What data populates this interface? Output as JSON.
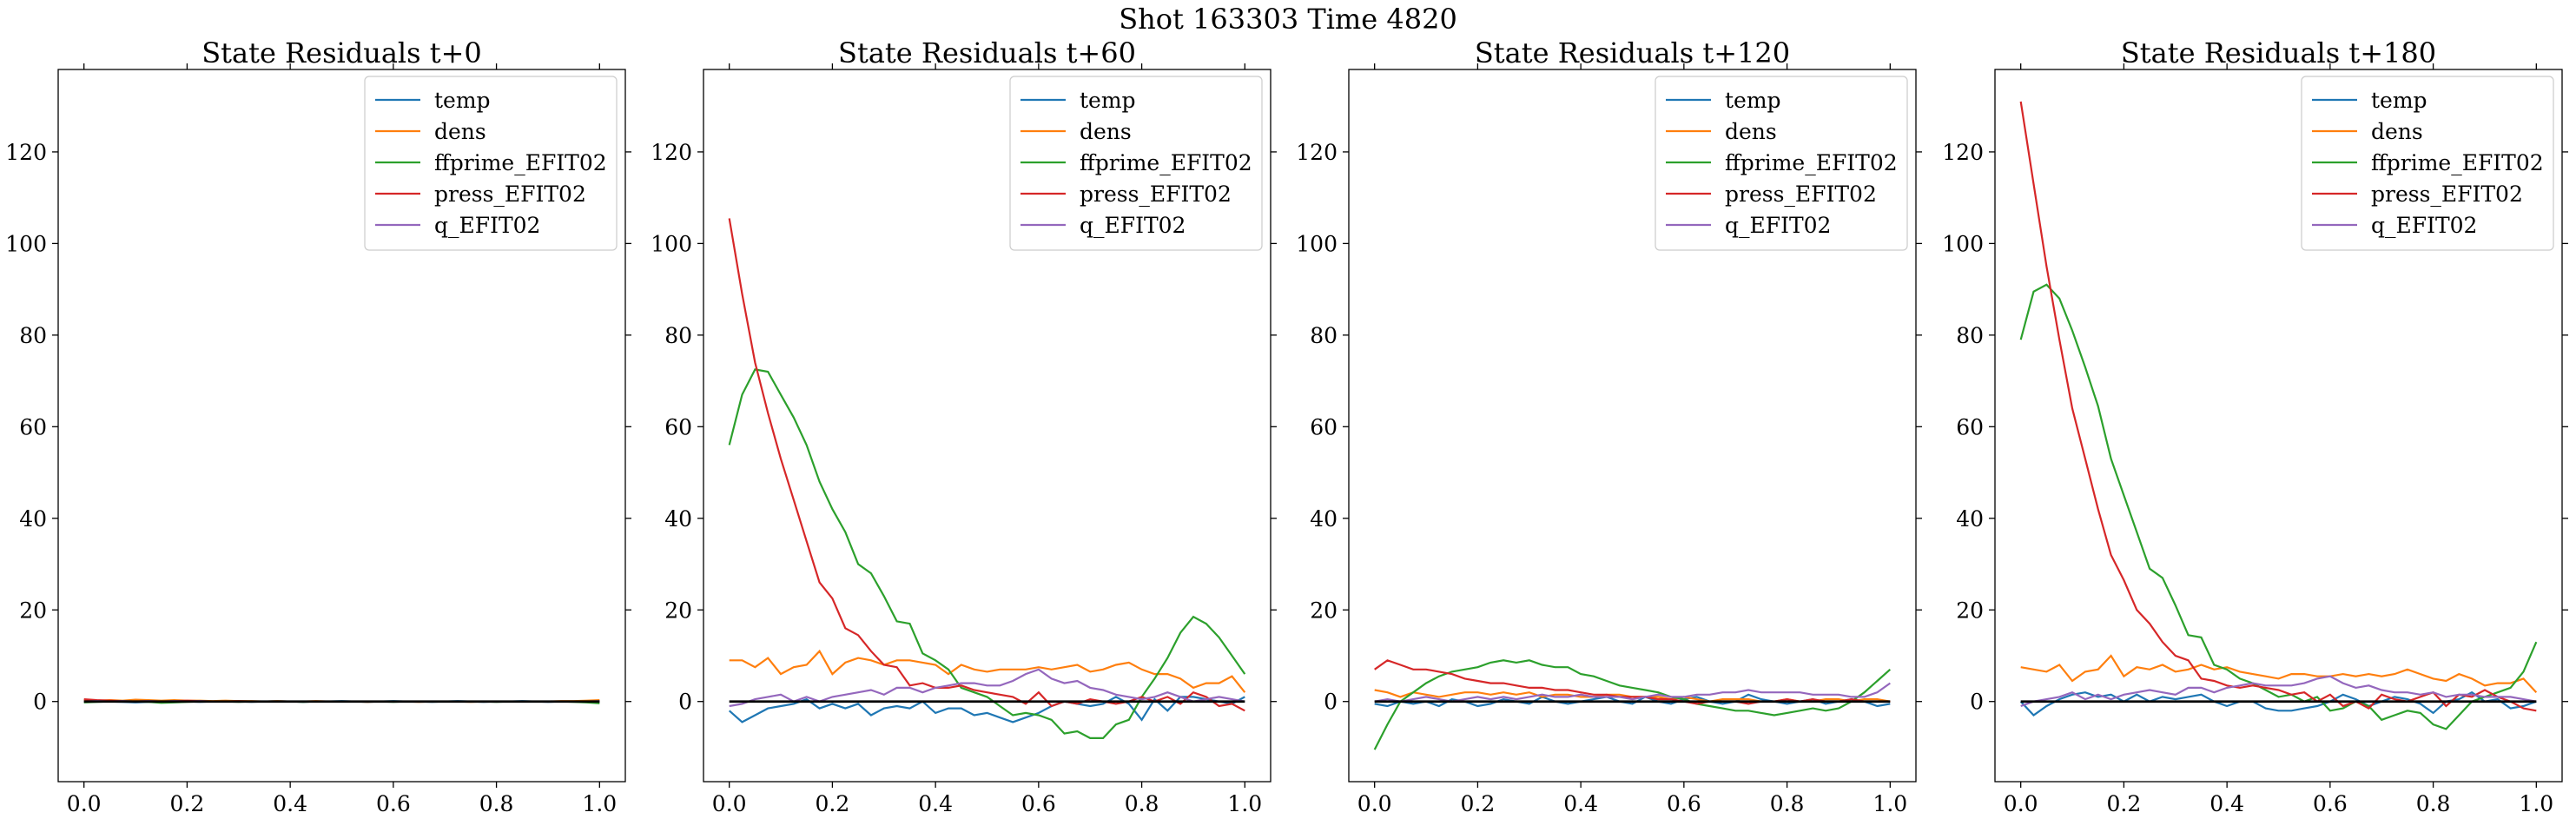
{
  "figure": {
    "suptitle": "Shot 163303   Time 4820"
  },
  "colors": {
    "temp": "#1f77b4",
    "dens": "#ff7f0e",
    "ffprime_EFIT02": "#2ca02c",
    "press_EFIT02": "#d62728",
    "q_EFIT02": "#9467bd",
    "zero_line": "#000000"
  },
  "chart_data": [
    {
      "type": "line",
      "title": "State Residuals t+0",
      "xlabel": "",
      "ylabel": "",
      "xlim": [
        -0.05,
        1.05
      ],
      "ylim": [
        -17.5,
        138
      ],
      "xticks": [
        "0.0",
        "0.2",
        "0.4",
        "0.6",
        "0.8",
        "1.0"
      ],
      "yticks": [
        "0",
        "20",
        "40",
        "60",
        "80",
        "100",
        "120"
      ],
      "legend": "top-right",
      "x": [
        0.0,
        0.025,
        0.05,
        0.075,
        0.1,
        0.125,
        0.15,
        0.175,
        0.2,
        0.225,
        0.25,
        0.275,
        0.3,
        0.325,
        0.35,
        0.375,
        0.4,
        0.425,
        0.45,
        0.475,
        0.5,
        0.525,
        0.55,
        0.575,
        0.6,
        0.625,
        0.65,
        0.675,
        0.7,
        0.725,
        0.75,
        0.775,
        0.8,
        0.825,
        0.85,
        0.875,
        0.9,
        0.925,
        0.95,
        0.975,
        1.0
      ],
      "series": [
        {
          "name": "temp",
          "values": [
            0.2,
            0.1,
            0.0,
            -0.1,
            -0.2,
            -0.1,
            0.0,
            0.1,
            0.0,
            -0.1,
            0.0,
            0.1,
            0.0,
            -0.1,
            0.0,
            0.1,
            0.0,
            -0.1,
            0.0,
            0.0,
            0.1,
            0.0,
            -0.1,
            0.0,
            0.1,
            0.0,
            0.0,
            -0.1,
            0.0,
            0.1,
            0.0,
            -0.1,
            0.0,
            0.0,
            0.1,
            0.0,
            -0.1,
            0.0,
            0.0,
            -0.1,
            0.0
          ]
        },
        {
          "name": "dens",
          "values": [
            0.3,
            0.2,
            0.3,
            0.2,
            0.4,
            0.3,
            0.2,
            0.3,
            0.2,
            0.2,
            0.1,
            0.2,
            0.1,
            0.1,
            0.0,
            0.1,
            0.0,
            0.0,
            0.1,
            0.0,
            0.0,
            0.0,
            -0.1,
            0.0,
            0.0,
            0.0,
            -0.1,
            0.0,
            0.0,
            0.0,
            -0.1,
            0.0,
            0.0,
            0.0,
            0.0,
            0.0,
            0.0,
            0.1,
            0.1,
            0.2,
            0.3
          ]
        },
        {
          "name": "ffprime_EFIT02",
          "values": [
            -0.2,
            -0.1,
            0.0,
            0.1,
            0.0,
            -0.1,
            -0.3,
            -0.2,
            -0.1,
            0.0,
            0.0,
            0.0,
            -0.1,
            0.0,
            0.0,
            0.0,
            0.0,
            -0.1,
            0.0,
            0.0,
            0.0,
            0.0,
            0.0,
            0.0,
            -0.1,
            0.0,
            0.0,
            0.0,
            0.0,
            0.0,
            0.0,
            0.0,
            -0.1,
            0.0,
            0.0,
            0.0,
            0.0,
            0.0,
            -0.1,
            -0.2,
            -0.4
          ]
        },
        {
          "name": "press_EFIT02",
          "values": [
            0.5,
            0.3,
            0.2,
            0.1,
            0.0,
            0.1,
            0.0,
            0.1,
            0.2,
            0.1,
            0.0,
            0.0,
            0.1,
            0.0,
            0.0,
            0.0,
            0.0,
            0.0,
            0.0,
            0.0,
            0.0,
            0.0,
            0.0,
            0.0,
            0.0,
            0.0,
            0.0,
            0.0,
            0.0,
            0.0,
            0.0,
            0.0,
            0.0,
            0.0,
            0.0,
            0.0,
            0.0,
            0.0,
            0.0,
            0.0,
            0.0
          ]
        },
        {
          "name": "q_EFIT02",
          "values": [
            0.0,
            0.1,
            0.0,
            0.1,
            0.0,
            0.1,
            0.0,
            0.1,
            0.0,
            0.1,
            0.0,
            0.0,
            0.0,
            0.0,
            0.0,
            0.0,
            0.0,
            0.0,
            0.0,
            0.0,
            0.0,
            0.0,
            0.0,
            0.0,
            0.0,
            0.0,
            0.0,
            0.0,
            0.0,
            0.0,
            0.0,
            0.0,
            0.0,
            0.0,
            0.0,
            0.0,
            0.0,
            0.0,
            0.0,
            0.0,
            0.1
          ]
        }
      ]
    },
    {
      "type": "line",
      "title": "State Residuals t+60",
      "xlabel": "",
      "ylabel": "",
      "xlim": [
        -0.05,
        1.05
      ],
      "ylim": [
        -17.5,
        138
      ],
      "xticks": [
        "0.0",
        "0.2",
        "0.4",
        "0.6",
        "0.8",
        "1.0"
      ],
      "yticks": [
        "0",
        "20",
        "40",
        "60",
        "80",
        "100",
        "120"
      ],
      "legend": "top-right",
      "x": [
        0.0,
        0.025,
        0.05,
        0.075,
        0.1,
        0.125,
        0.15,
        0.175,
        0.2,
        0.225,
        0.25,
        0.275,
        0.3,
        0.325,
        0.35,
        0.375,
        0.4,
        0.425,
        0.45,
        0.475,
        0.5,
        0.525,
        0.55,
        0.575,
        0.6,
        0.625,
        0.65,
        0.675,
        0.7,
        0.725,
        0.75,
        0.775,
        0.8,
        0.825,
        0.85,
        0.875,
        0.9,
        0.925,
        0.95,
        0.975,
        1.0
      ],
      "series": [
        {
          "name": "temp",
          "values": [
            -2,
            -4.5,
            -3,
            -1.5,
            -1,
            -0.5,
            0.5,
            -1.5,
            -0.5,
            -1.5,
            -0.5,
            -3,
            -1.5,
            -1,
            -1.5,
            0,
            -2.5,
            -1.5,
            -1.5,
            -3,
            -2.5,
            -3.5,
            -4.5,
            -3.5,
            -2.5,
            -1,
            0,
            -0.5,
            -1,
            -0.5,
            1,
            -0.5,
            -4,
            0.5,
            -2,
            1,
            1,
            0.5,
            0,
            -0.5,
            1
          ]
        },
        {
          "name": "dens",
          "values": [
            9,
            9,
            7.5,
            9.5,
            6,
            7.5,
            8,
            11,
            6,
            8.5,
            9.5,
            9,
            8,
            9,
            9,
            8.5,
            8,
            6,
            8,
            7,
            6.5,
            7,
            7,
            7,
            7.5,
            7,
            7.5,
            8,
            6.5,
            7,
            8,
            8.5,
            7,
            6,
            6,
            5,
            3,
            4,
            4,
            5.5,
            2
          ]
        },
        {
          "name": "ffprime_EFIT02",
          "values": [
            56,
            67,
            72.5,
            72,
            67,
            62,
            56,
            48,
            42,
            37,
            30,
            28,
            23,
            17.5,
            17,
            10.5,
            9,
            7,
            3,
            2,
            1,
            -1,
            -3,
            -2.5,
            -3,
            -4,
            -7,
            -6.5,
            -8,
            -8,
            -5,
            -4,
            1,
            5,
            9.5,
            15,
            18.5,
            17,
            14,
            10,
            6
          ]
        },
        {
          "name": "press_EFIT02",
          "values": [
            105.5,
            89,
            74,
            63,
            53,
            44,
            35,
            26,
            22.5,
            16,
            14.5,
            11,
            8,
            7.5,
            3.5,
            4,
            3,
            3,
            3.5,
            2.5,
            2,
            1.5,
            1,
            -0.5,
            2,
            -1,
            0,
            -0.5,
            0.5,
            0,
            -0.5,
            0,
            1,
            0,
            1,
            -0.5,
            2,
            1,
            -1,
            -0.5,
            -2
          ]
        },
        {
          "name": "q_EFIT02",
          "values": [
            -1,
            -0.5,
            0.5,
            1,
            1.5,
            0,
            1,
            0,
            1,
            1.5,
            2,
            2.5,
            1.5,
            3,
            3,
            2,
            3,
            3.5,
            4,
            4,
            3.5,
            3.5,
            4.5,
            6,
            7,
            5,
            4,
            4.5,
            3,
            2.5,
            1.5,
            1,
            0.5,
            1,
            2,
            1,
            0,
            0.5,
            1,
            0.5,
            0
          ]
        }
      ]
    },
    {
      "type": "line",
      "title": "State Residuals t+120",
      "xlabel": "",
      "ylabel": "",
      "xlim": [
        -0.05,
        1.05
      ],
      "ylim": [
        -17.5,
        138
      ],
      "xticks": [
        "0.0",
        "0.2",
        "0.4",
        "0.6",
        "0.8",
        "1.0"
      ],
      "yticks": [
        "0",
        "20",
        "40",
        "60",
        "80",
        "100",
        "120"
      ],
      "legend": "top-right",
      "x": [
        0.0,
        0.025,
        0.05,
        0.075,
        0.1,
        0.125,
        0.15,
        0.175,
        0.2,
        0.225,
        0.25,
        0.275,
        0.3,
        0.325,
        0.35,
        0.375,
        0.4,
        0.425,
        0.45,
        0.475,
        0.5,
        0.525,
        0.55,
        0.575,
        0.6,
        0.625,
        0.65,
        0.675,
        0.7,
        0.725,
        0.75,
        0.775,
        0.8,
        0.825,
        0.85,
        0.875,
        0.9,
        0.925,
        0.95,
        0.975,
        1.0
      ],
      "series": [
        {
          "name": "temp",
          "values": [
            -0.5,
            -1,
            0,
            -0.5,
            0,
            -1,
            0.5,
            0,
            -1,
            -0.5,
            0.5,
            0,
            -0.5,
            1,
            0,
            -0.5,
            0,
            0.5,
            1,
            0,
            -0.5,
            1,
            0,
            -0.5,
            0.5,
            1,
            0,
            -0.5,
            0,
            1.5,
            0.5,
            0,
            -0.5,
            0,
            0.5,
            -0.5,
            0,
            0.5,
            0,
            -1,
            -0.5
          ]
        },
        {
          "name": "dens",
          "values": [
            2.5,
            2,
            1,
            2,
            1.5,
            1,
            1.5,
            2,
            2,
            1.5,
            2,
            1.5,
            2,
            1,
            1.5,
            1.5,
            1,
            1,
            1.5,
            1.5,
            1,
            1,
            1,
            0.5,
            1,
            0.5,
            0,
            0.5,
            0.5,
            0.5,
            0,
            0,
            0.5,
            0,
            0,
            0.5,
            0.5,
            0,
            0.5,
            0.5,
            0
          ]
        },
        {
          "name": "ffprime_EFIT02",
          "values": [
            -10.5,
            -5,
            0,
            2,
            4,
            5.5,
            6.5,
            7,
            7.5,
            8.5,
            9,
            8.5,
            9,
            8,
            7.5,
            7.5,
            6,
            5.5,
            4.5,
            3.5,
            3,
            2.5,
            2,
            1,
            0.5,
            -0.5,
            -1,
            -1.5,
            -2,
            -2,
            -2.5,
            -3,
            -2.5,
            -2,
            -1.5,
            -2,
            -1.5,
            0,
            2,
            4.5,
            7
          ]
        },
        {
          "name": "press_EFIT02",
          "values": [
            7,
            9,
            8,
            7,
            7,
            6.5,
            6,
            5,
            4.5,
            4,
            4,
            3.5,
            3,
            3,
            2.5,
            2.5,
            2,
            1.5,
            1.5,
            1,
            1,
            1,
            0.5,
            0.5,
            0,
            -0.5,
            0,
            0,
            0,
            -0.5,
            0,
            0,
            0.5,
            0,
            0.5,
            0,
            0,
            0.5,
            0,
            0,
            0
          ]
        },
        {
          "name": "q_EFIT02",
          "values": [
            0,
            0.5,
            0,
            0.5,
            1,
            0.5,
            0,
            0.5,
            1,
            0.5,
            1,
            0.5,
            1,
            1.5,
            1,
            1,
            1.5,
            1,
            1,
            1,
            0.5,
            1,
            1.5,
            1,
            1,
            1.5,
            1.5,
            2,
            2,
            2.5,
            2,
            2,
            2,
            2,
            1.5,
            1.5,
            1.5,
            1,
            1,
            2,
            4
          ]
        }
      ]
    },
    {
      "type": "line",
      "title": "State Residuals t+180",
      "xlabel": "",
      "ylabel": "",
      "xlim": [
        -0.05,
        1.05
      ],
      "ylim": [
        -17.5,
        138
      ],
      "xticks": [
        "0.0",
        "0.2",
        "0.4",
        "0.6",
        "0.8",
        "1.0"
      ],
      "yticks": [
        "0",
        "20",
        "40",
        "60",
        "80",
        "100",
        "120"
      ],
      "legend": "top-right",
      "x": [
        0.0,
        0.025,
        0.05,
        0.075,
        0.1,
        0.125,
        0.15,
        0.175,
        0.2,
        0.225,
        0.25,
        0.275,
        0.3,
        0.325,
        0.35,
        0.375,
        0.4,
        0.425,
        0.45,
        0.475,
        0.5,
        0.525,
        0.55,
        0.575,
        0.6,
        0.625,
        0.65,
        0.675,
        0.7,
        0.725,
        0.75,
        0.775,
        0.8,
        0.825,
        0.85,
        0.875,
        0.9,
        0.925,
        0.95,
        0.975,
        1.0
      ],
      "series": [
        {
          "name": "temp",
          "values": [
            0,
            -3,
            -1,
            0.5,
            1.5,
            2,
            1,
            1.5,
            0,
            1.5,
            0,
            1,
            0.5,
            1,
            1.5,
            0,
            -1,
            0,
            0,
            -1.5,
            -2,
            -2,
            -1.5,
            -1,
            0,
            1.5,
            0.5,
            -1,
            0,
            1,
            0.5,
            -0.5,
            -2.5,
            0,
            0.5,
            2,
            0,
            0.5,
            -1.5,
            -1,
            0
          ]
        },
        {
          "name": "dens",
          "values": [
            7.5,
            7,
            6.5,
            8,
            4.5,
            6.5,
            7,
            10,
            5.5,
            7.5,
            7,
            8,
            6.5,
            7,
            8,
            7,
            7.5,
            6.5,
            6,
            5.5,
            5,
            6,
            6,
            5.5,
            5.5,
            6,
            5.5,
            6,
            5.5,
            6,
            7,
            6,
            5,
            4.5,
            6,
            5,
            3.5,
            4,
            4,
            5,
            2
          ]
        },
        {
          "name": "ffprime_EFIT02",
          "values": [
            79,
            89.5,
            91,
            88,
            81,
            73,
            64.5,
            53,
            45,
            37,
            29,
            27,
            21,
            14.5,
            14,
            8,
            7,
            5,
            4,
            2.5,
            1,
            1.5,
            0,
            1,
            -2,
            -1.5,
            0,
            -1,
            -4,
            -3,
            -2,
            -2.5,
            -5,
            -6,
            -3,
            0,
            1,
            2,
            3,
            6.5,
            13
          ]
        },
        {
          "name": "press_EFIT02",
          "values": [
            131,
            113,
            95,
            79,
            64,
            53,
            42,
            32,
            26.5,
            20,
            17,
            13,
            10,
            9,
            5,
            4.5,
            3.5,
            3,
            3.5,
            3,
            2.5,
            1.5,
            2,
            0,
            1.5,
            -1,
            0,
            -1.5,
            1.5,
            0.5,
            0,
            1,
            2,
            -1,
            1.5,
            1,
            2.5,
            1,
            0,
            -1.5,
            -2
          ]
        },
        {
          "name": "q_EFIT02",
          "values": [
            -1,
            0,
            0.5,
            1,
            2,
            0.5,
            1.5,
            0.5,
            1.5,
            2,
            2.5,
            2,
            1.5,
            3,
            3,
            2,
            3,
            3.5,
            4,
            3.5,
            3.5,
            3.5,
            4,
            5,
            5.5,
            4,
            3,
            3.5,
            2.5,
            2,
            2,
            1.5,
            2,
            1,
            1.5,
            1.5,
            1,
            1,
            1,
            0.5,
            0
          ]
        }
      ]
    }
  ]
}
